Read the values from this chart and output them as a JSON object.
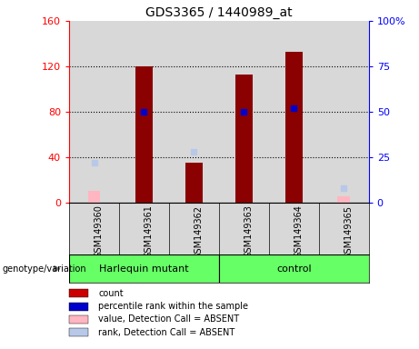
{
  "title": "GDS3365 / 1440989_at",
  "samples": [
    "GSM149360",
    "GSM149361",
    "GSM149362",
    "GSM149363",
    "GSM149364",
    "GSM149365"
  ],
  "group_boundaries": [
    0,
    3,
    6
  ],
  "group_labels": [
    "Harlequin mutant",
    "control"
  ],
  "green_color": "#66FF66",
  "counts": [
    null,
    120,
    35,
    113,
    133,
    null
  ],
  "ranks_pct": [
    null,
    50,
    null,
    50,
    52,
    null
  ],
  "absent_values": [
    10,
    null,
    null,
    null,
    null,
    5
  ],
  "absent_ranks_pct": [
    22,
    null,
    null,
    null,
    null,
    8
  ],
  "absent_rank_362_pct": 28,
  "left_ylim": [
    0,
    160
  ],
  "right_ylim": [
    0,
    100
  ],
  "left_yticks": [
    0,
    40,
    80,
    120,
    160
  ],
  "right_yticks": [
    0,
    25,
    50,
    75,
    100
  ],
  "right_yticklabels": [
    "0",
    "25",
    "50",
    "75",
    "100%"
  ],
  "bar_color": "#8B0000",
  "rank_color": "#0000CD",
  "absent_value_color": "#FFB6C1",
  "absent_rank_color": "#B8C8E8",
  "bar_width": 0.35,
  "plot_bg": "#D8D8D8",
  "legend_items": [
    {
      "color": "#CC0000",
      "label": "count"
    },
    {
      "color": "#0000CC",
      "label": "percentile rank within the sample"
    },
    {
      "color": "#FFB6C1",
      "label": "value, Detection Call = ABSENT"
    },
    {
      "color": "#B8C8E8",
      "label": "rank, Detection Call = ABSENT"
    }
  ]
}
